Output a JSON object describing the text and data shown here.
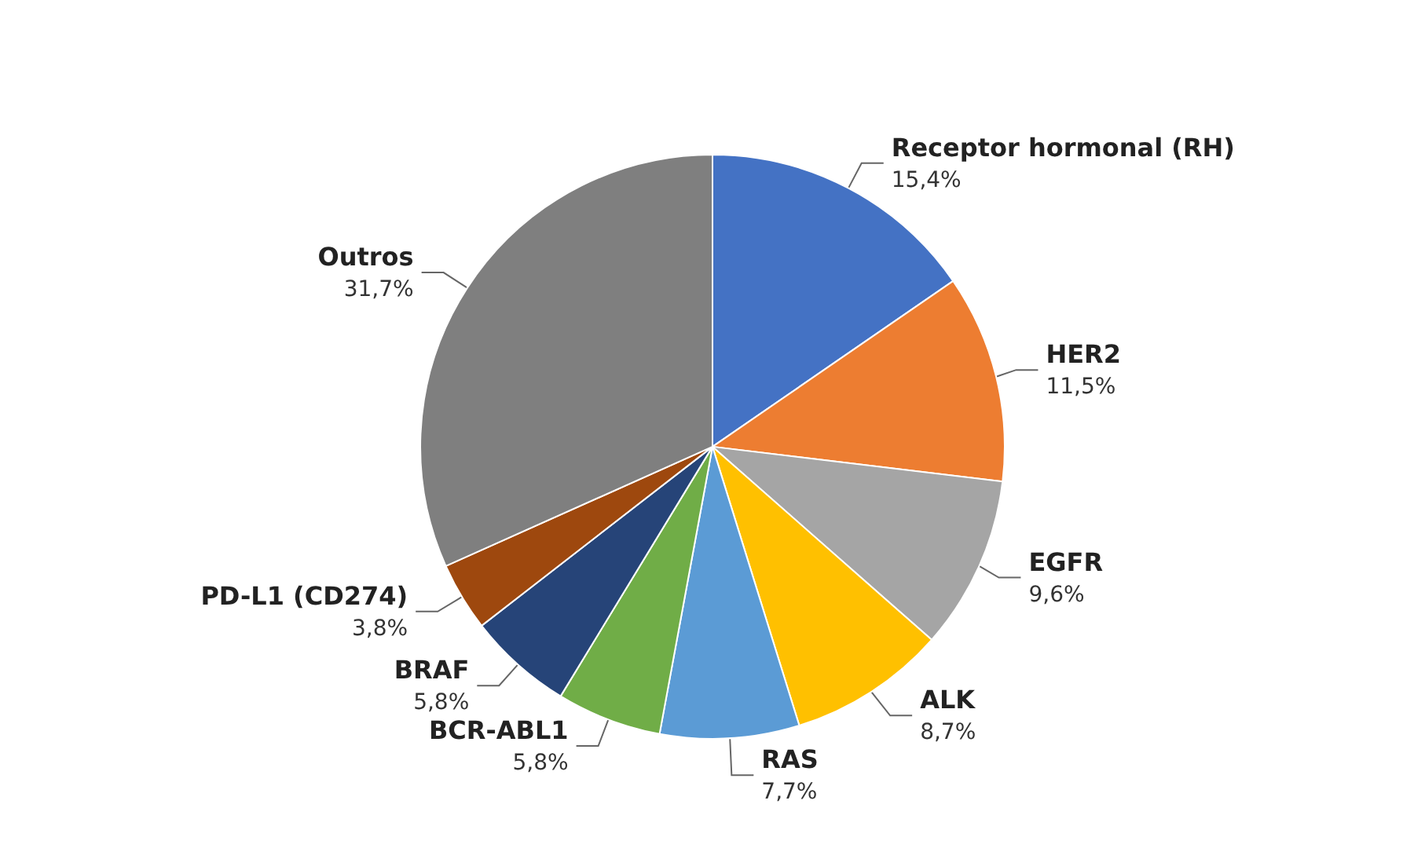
{
  "chart_data": {
    "type": "pie",
    "categories": [
      "Receptor hormonal (RH)",
      "HER2",
      "EGFR",
      "ALK",
      "RAS",
      "BCR-ABL1",
      "BRAF",
      "PD-L1 (CD274)",
      "Outros"
    ],
    "values": [
      15.4,
      11.5,
      9.6,
      8.7,
      7.7,
      5.8,
      5.8,
      3.8,
      31.7
    ],
    "value_labels": [
      "15,4%",
      "11,5%",
      "9,6%",
      "8,7%",
      "7,7%",
      "5,8%",
      "5,8%",
      "3,8%",
      "31,7%"
    ],
    "colors": [
      "#4472c4",
      "#ed7d31",
      "#a5a5a5",
      "#ffc000",
      "#5b9bd5",
      "#70ad47",
      "#264478",
      "#9e480e",
      "#7f7f7f"
    ],
    "legend": false
  }
}
